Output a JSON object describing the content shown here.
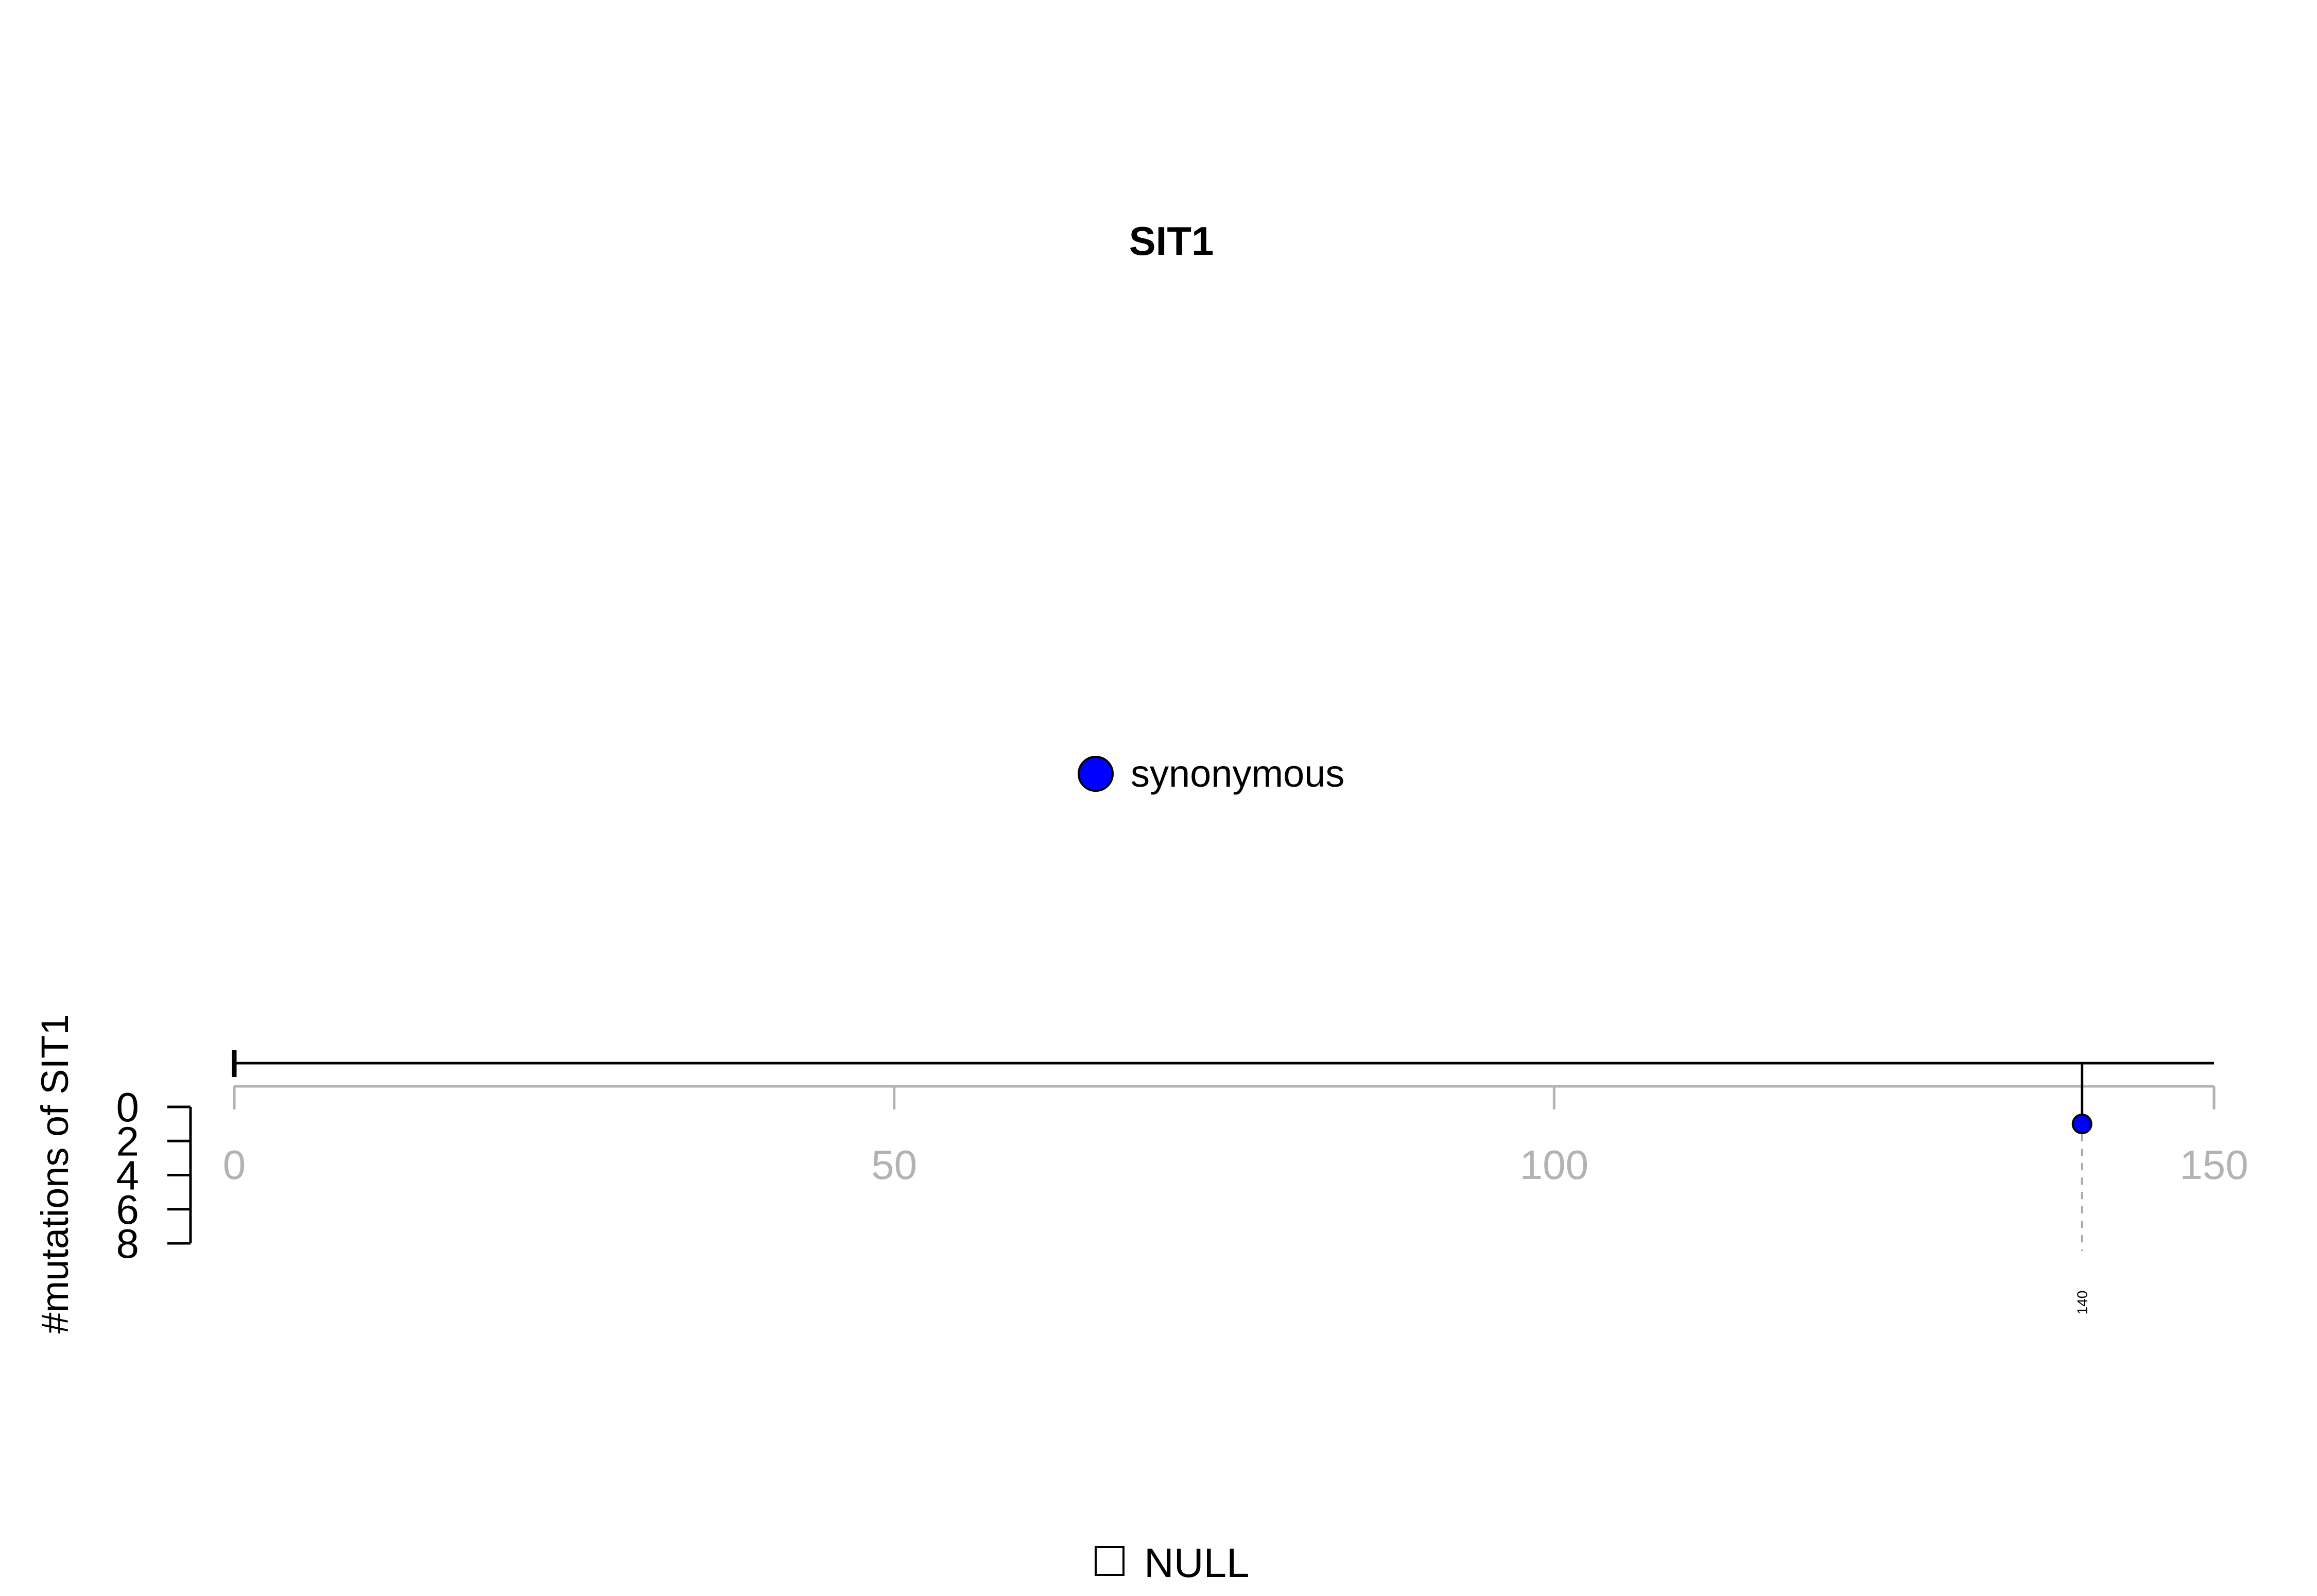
{
  "chart_data": {
    "type": "lollipop",
    "title": "SIT1",
    "ylabel": "#mutations of SIT1",
    "xlabel": "",
    "xlim": [
      0,
      150
    ],
    "x_ticks": [
      0,
      50,
      100,
      150
    ],
    "ylim": [
      0,
      8
    ],
    "y_ticks": [
      0,
      2,
      4,
      6,
      8
    ],
    "protein_length": 150,
    "legend_mutation_types": [
      {
        "name": "synonymous",
        "color": "#0000ff"
      }
    ],
    "legend_domains": [
      {
        "name": "NULL",
        "color": "#ffffff"
      }
    ],
    "mutations": [
      {
        "position": 140,
        "count": 1,
        "type": "synonymous",
        "color": "#0000ff",
        "label": "140"
      }
    ],
    "axis_color": "#b3b3b3"
  }
}
